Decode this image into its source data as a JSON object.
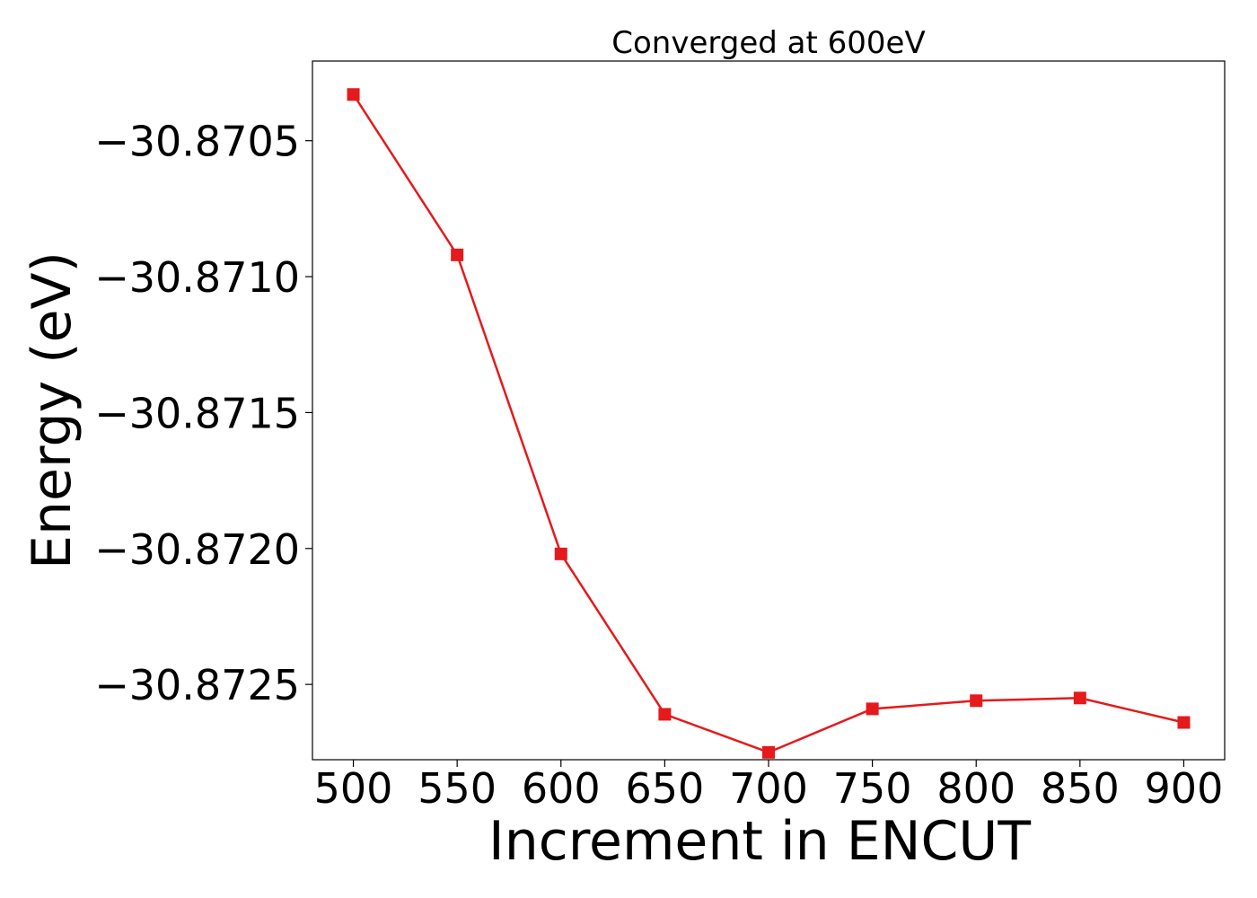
{
  "chart_data": {
    "type": "line",
    "title": "Converged at 600eV",
    "xlabel": "Increment in ENCUT",
    "ylabel": "Energy (eV)",
    "x": [
      500,
      550,
      600,
      650,
      700,
      750,
      800,
      850,
      900
    ],
    "series": [
      {
        "values": [
          -30.87033,
          -30.87092,
          -30.87202,
          -30.87261,
          -30.87275,
          -30.87259,
          -30.87256,
          -30.87255,
          -30.87264
        ],
        "color": "#e41a1c",
        "marker": "square"
      }
    ],
    "x_ticks": [
      500,
      550,
      600,
      650,
      700,
      750,
      800,
      850,
      900
    ],
    "x_tick_labels": [
      "500",
      "550",
      "600",
      "650",
      "700",
      "750",
      "800",
      "850",
      "900"
    ],
    "y_ticks": [
      -30.8705,
      -30.871,
      -30.8715,
      -30.872,
      -30.8725
    ],
    "y_tick_labels": [
      "−30.8705",
      "−30.8710",
      "−30.8715",
      "−30.8720",
      "−30.8725"
    ],
    "xlim": [
      480.3,
      919.7
    ],
    "ylim": [
      -30.872777,
      -30.870207
    ],
    "grid": false,
    "legend": "none"
  }
}
